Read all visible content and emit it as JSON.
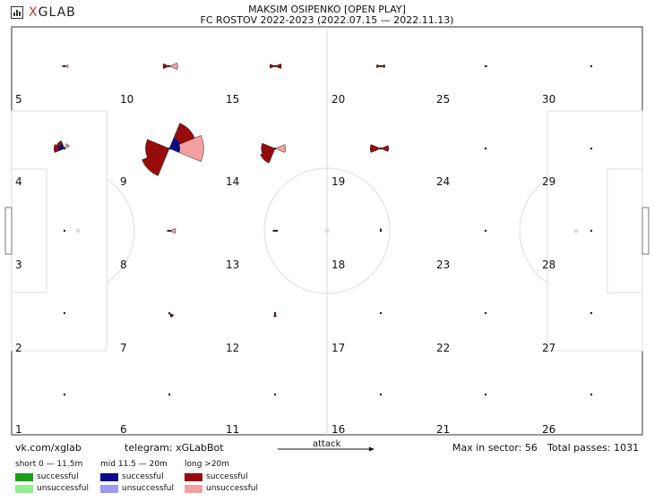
{
  "logo": {
    "prefix": "X",
    "name": "GLAB"
  },
  "title": {
    "line1": "MAKSIM OSIPENKO [OPEN PLAY]",
    "line2": "FC ROSTOV 2022-2023 (2022.07.15 — 2022.11.13)"
  },
  "footer": {
    "vk": "vk.com/xglab",
    "telegram": "telegram: xGLabBot",
    "attack": "attack",
    "max_sector": "Max in sector: 56",
    "total": "Total passes: 1031"
  },
  "legend": {
    "short": {
      "label": "short 0 — 11.5m",
      "successful": "successful",
      "unsuccessful": "unsuccessful",
      "color_s": "#1a9e1a",
      "color_u": "#90f090"
    },
    "mid": {
      "label": "mid 11.5 — 20m",
      "successful": "successful",
      "unsuccessful": "unsuccessful",
      "color_s": "#0a0a8c",
      "color_u": "#9a9af0"
    },
    "long": {
      "label": "long >20m",
      "successful": "successful",
      "unsuccessful": "unsuccessful",
      "color_s": "#990b0b",
      "color_u": "#f5a0a0"
    }
  },
  "chart_data": {
    "type": "polar-grid",
    "max_in_sector": 56,
    "total_passes": 1031,
    "zones": [
      {
        "id": 1,
        "roses": []
      },
      {
        "id": 2,
        "roses": []
      },
      {
        "id": 3,
        "roses": []
      },
      {
        "id": 4,
        "roses": [
          {
            "dir": 135,
            "mid_s": 10,
            "long_s": 6
          },
          {
            "dir": 180,
            "mid_s": 12,
            "long_s": 8
          },
          {
            "dir": 45,
            "long_u": 10
          }
        ]
      },
      {
        "id": 5,
        "roses": [
          {
            "dir": 0,
            "long_u": 7
          },
          {
            "dir": 180,
            "long_s": 4
          }
        ]
      },
      {
        "id": 6,
        "roses": []
      },
      {
        "id": 7,
        "roses": [
          {
            "dir": 315,
            "mid_s": 6,
            "long_s": 3
          }
        ]
      },
      {
        "id": 8,
        "roses": [
          {
            "dir": 0,
            "mid_s": 4,
            "long_u": 8
          },
          {
            "dir": 180,
            "mid_s": 4
          }
        ]
      },
      {
        "id": 9,
        "roses": [
          {
            "dir": 0,
            "mid_s": 20,
            "long_u": 45
          },
          {
            "dir": 45,
            "mid_s": 22,
            "long_s": 30
          },
          {
            "dir": 225,
            "long_s": 56
          },
          {
            "dir": 180,
            "long_s": 45
          }
        ]
      },
      {
        "id": 10,
        "roses": [
          {
            "dir": 0,
            "long_u": 16
          },
          {
            "dir": 180,
            "long_s": 12
          }
        ]
      },
      {
        "id": 11,
        "roses": []
      },
      {
        "id": 12,
        "roses": [
          {
            "dir": 270,
            "mid_s": 4,
            "long_s": 3
          }
        ]
      },
      {
        "id": 13,
        "roses": [
          {
            "dir": 0,
            "mid_s": 5
          },
          {
            "dir": 180,
            "mid_s": 4
          }
        ]
      },
      {
        "id": 14,
        "roses": [
          {
            "dir": 0,
            "long_u": 20
          },
          {
            "dir": 225,
            "long_s": 30
          },
          {
            "dir": 180,
            "long_s": 26
          }
        ]
      },
      {
        "id": 15,
        "roses": [
          {
            "dir": 0,
            "long_s": 12
          },
          {
            "dir": 180,
            "long_s": 10
          }
        ]
      },
      {
        "id": 16,
        "roses": []
      },
      {
        "id": 17,
        "roses": []
      },
      {
        "id": 18,
        "roses": [
          {
            "dir": 90,
            "mid_s": 4
          }
        ]
      },
      {
        "id": 19,
        "roses": [
          {
            "dir": 0,
            "long_s": 15
          },
          {
            "dir": 180,
            "long_s": 20
          }
        ]
      },
      {
        "id": 20,
        "roses": [
          {
            "dir": 0,
            "long_s": 8
          },
          {
            "dir": 180,
            "long_s": 8
          }
        ]
      },
      {
        "id": 21,
        "roses": []
      },
      {
        "id": 22,
        "roses": []
      },
      {
        "id": 23,
        "roses": []
      },
      {
        "id": 24,
        "roses": []
      },
      {
        "id": 25,
        "roses": [
          {
            "dir": 0,
            "long_u": 3
          }
        ]
      },
      {
        "id": 26,
        "roses": []
      },
      {
        "id": 27,
        "roses": []
      },
      {
        "id": 28,
        "roses": []
      },
      {
        "id": 29,
        "roses": []
      },
      {
        "id": 30,
        "roses": []
      }
    ]
  }
}
